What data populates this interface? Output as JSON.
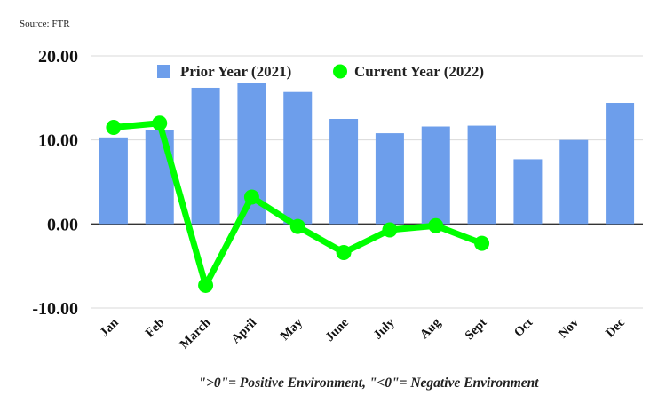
{
  "source": "Source: FTR",
  "footnote": "\">0\"= Positive Environment, \"<0\"= Negative Environment",
  "chart_data": {
    "type": "bar",
    "title": "",
    "xlabel": "",
    "ylabel": "",
    "ylim": [
      -10,
      20
    ],
    "yticks": [
      "-10.00",
      "0.00",
      "10.00",
      "20.00"
    ],
    "grid": true,
    "legend_position": "top",
    "categories": [
      "Jan",
      "Feb",
      "March",
      "April",
      "May",
      "June",
      "July",
      "Aug",
      "Sept",
      "Oct",
      "Nov",
      "Dec"
    ],
    "series": [
      {
        "name": "Prior Year (2021)",
        "type": "bar",
        "color": "#6d9eeb",
        "values": [
          10.3,
          11.2,
          16.2,
          16.8,
          15.7,
          12.5,
          10.8,
          11.6,
          11.7,
          7.7,
          10.0,
          14.4
        ]
      },
      {
        "name": "Current Year (2022)",
        "type": "line",
        "color": "#00ff00",
        "values": [
          11.5,
          12.0,
          -7.3,
          3.2,
          -0.3,
          -3.4,
          -0.7,
          -0.2,
          -2.3,
          null,
          null,
          null
        ]
      }
    ]
  }
}
